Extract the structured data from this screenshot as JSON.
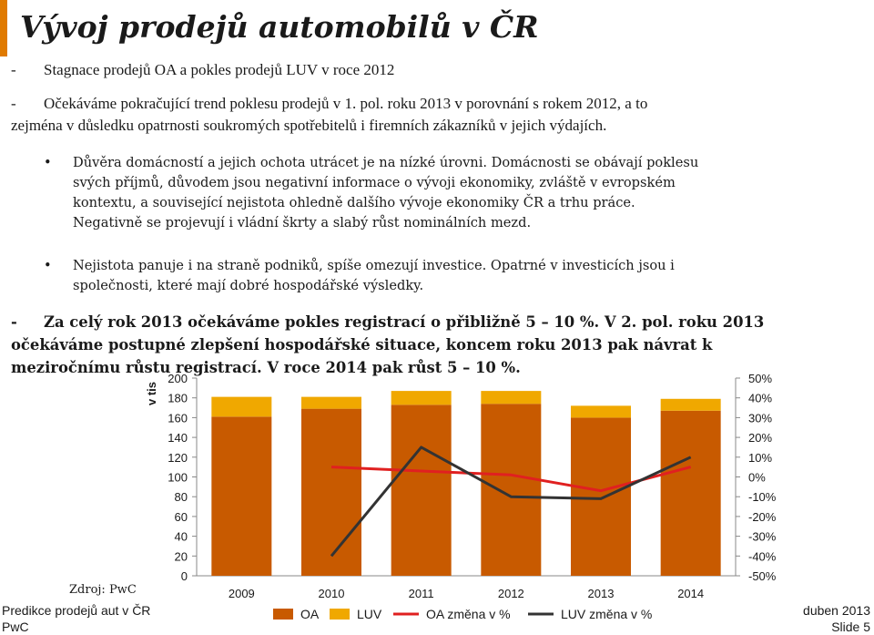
{
  "slide": {
    "title": "Vývoj prodejů automobilů v ČR",
    "bullet1": "Stagnace prodejů OA a pokles prodejů LUV v roce 2012",
    "bullet2_line1": "Očekáváme pokračující trend poklesu prodejů  v 1. pol. roku 2013 v porovnání s rokem 2012, a to",
    "bullet2_line2": "zejména v důsledku opatrnosti soukromých spotřebitelů i firemních zákazníků v jejich výdajích.",
    "sub1_lines": [
      "Důvěra domácností a jejich ochota utrácet je na nízké úrovni. Domácnosti se obávají poklesu",
      "svých příjmů, důvodem jsou negativní informace o vývoji ekonomiky, zvláště v evropském",
      "kontextu, a související nejistota ohledně dalšího vývoje ekonomiky ČR a trhu práce.",
      "Negativně se projevují i vládní škrty a slabý růst nominálních mezd."
    ],
    "sub2_lines": [
      "Nejistota panuje i na straně podniků, spíše omezují investice. Opatrné v investicích jsou i",
      "společnosti, které mají dobré hospodářské výsledky."
    ],
    "bold_lines": [
      "Za celý rok 2013 očekáváme pokles registrací o přibližně 5 – 10  %. V 2. pol. roku 2013",
      "očekáváme postupné zlepšení hospodářské situace, koncem roku 2013 pak návrat k",
      "meziročnímu růstu registrací. V roce 2014 pak růst 5 – 10  %."
    ],
    "bullet_dash": "-",
    "sub_bullet": "•",
    "source": "Zdroj: PwC",
    "footer_left_1": "Predikce prodejů aut v ČR",
    "footer_left_2": "PwC",
    "footer_right_1": "duben 2013",
    "footer_right_2": "Slide 5"
  },
  "chart_data": {
    "type": "bar",
    "stacked": true,
    "categories": [
      "2009",
      "2010",
      "2011",
      "2012",
      "2013",
      "2014"
    ],
    "ylabel": "v tis",
    "ylim": [
      0,
      200
    ],
    "yticks": [
      "0",
      "20",
      "40",
      "60",
      "80",
      "100",
      "120",
      "140",
      "160",
      "180",
      "200"
    ],
    "y2lim": [
      -50,
      50
    ],
    "y2ticks": [
      "-50%",
      "-40%",
      "-30%",
      "-20%",
      "-10%",
      "0%",
      "10%",
      "20%",
      "30%",
      "40%",
      "50%"
    ],
    "series": [
      {
        "name": "OA",
        "axis": "left",
        "kind": "bar",
        "color": "#c85a00",
        "values": [
          161,
          169,
          173,
          174,
          160,
          167
        ]
      },
      {
        "name": "LUV",
        "axis": "left",
        "kind": "bar",
        "color": "#f0a800",
        "values": [
          20,
          12,
          14,
          13,
          12,
          12
        ]
      },
      {
        "name": "OA změna v %",
        "axis": "right",
        "kind": "line",
        "color": "#e02020",
        "values": [
          null,
          5,
          3,
          1,
          -7,
          5
        ]
      },
      {
        "name": "LUV změna v %",
        "axis": "right",
        "kind": "line",
        "color": "#333333",
        "values": [
          null,
          -40,
          15,
          -10,
          -11,
          10
        ]
      }
    ],
    "legend_position": "bottom"
  }
}
